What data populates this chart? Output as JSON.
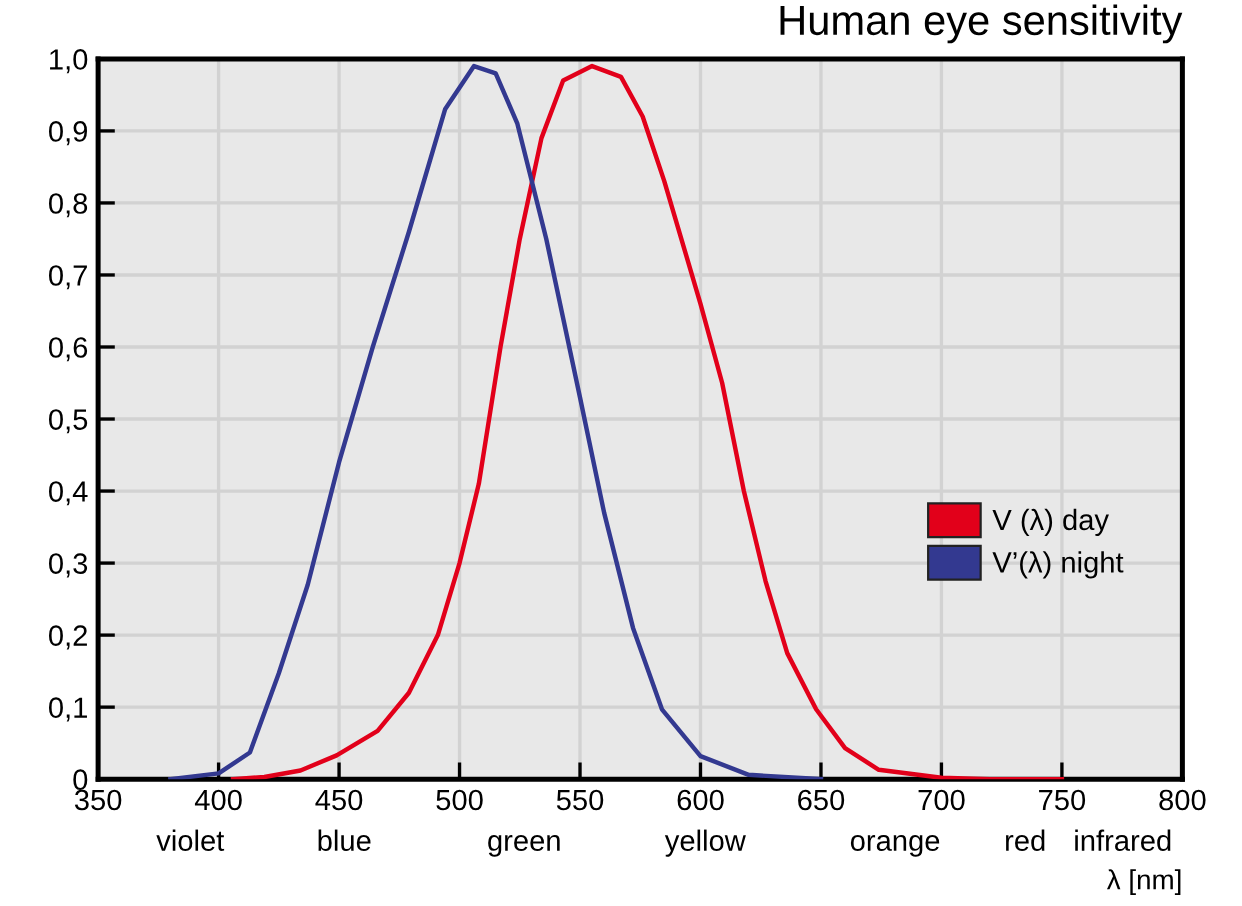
{
  "chart_data": {
    "type": "line",
    "title": "Human eye sensitivity",
    "xlabel": "λ [nm]",
    "xlim": [
      350,
      800
    ],
    "xticks": [
      350,
      400,
      450,
      500,
      550,
      600,
      650,
      700,
      750,
      800
    ],
    "ylim": [
      0,
      1.0
    ],
    "yticks": [
      {
        "value": 0,
        "label": "0"
      },
      {
        "value": 0.1,
        "label": "0,1"
      },
      {
        "value": 0.2,
        "label": "0,2"
      },
      {
        "value": 0.3,
        "label": "0,3"
      },
      {
        "value": 0.4,
        "label": "0,4"
      },
      {
        "value": 0.5,
        "label": "0,5"
      },
      {
        "value": 0.6,
        "label": "0,6"
      },
      {
        "value": 0.7,
        "label": "0,7"
      },
      {
        "value": 0.8,
        "label": "0,8"
      },
      {
        "value": 0.9,
        "label": "0,9"
      },
      {
        "value": 1.0,
        "label": "1,0"
      }
    ],
    "annotations": [
      "violet",
      "blue",
      "green",
      "yellow",
      "orange",
      "red",
      "infrared"
    ],
    "grid": true,
    "legend": "right",
    "marker": "none",
    "line_style": "solid",
    "series": [
      {
        "name": "V (λ) day",
        "color": "#e2001a",
        "x": [
          406,
          419,
          434,
          449,
          466,
          479,
          491,
          500,
          508,
          517,
          525,
          534,
          543,
          555,
          567,
          576,
          585,
          600,
          609,
          618,
          627,
          636,
          648,
          660,
          674,
          700,
          720,
          750
        ],
        "values": [
          0,
          0.003,
          0.012,
          0.033,
          0.067,
          0.12,
          0.2,
          0.3,
          0.41,
          0.6,
          0.75,
          0.89,
          0.97,
          0.99,
          0.975,
          0.92,
          0.83,
          0.66,
          0.55,
          0.4,
          0.275,
          0.175,
          0.097,
          0.043,
          0.013,
          0.002,
          0,
          0
        ]
      },
      {
        "name": "V’(λ) night",
        "color": "#333990",
        "x": [
          380,
          400,
          413,
          425,
          437,
          450,
          464,
          479,
          494,
          506,
          515,
          524,
          536,
          550,
          560,
          572,
          584,
          600,
          620,
          650
        ],
        "values": [
          0,
          0.008,
          0.037,
          0.147,
          0.27,
          0.44,
          0.6,
          0.76,
          0.93,
          0.99,
          0.98,
          0.91,
          0.75,
          0.53,
          0.37,
          0.21,
          0.097,
          0.032,
          0.006,
          0
        ]
      }
    ]
  }
}
